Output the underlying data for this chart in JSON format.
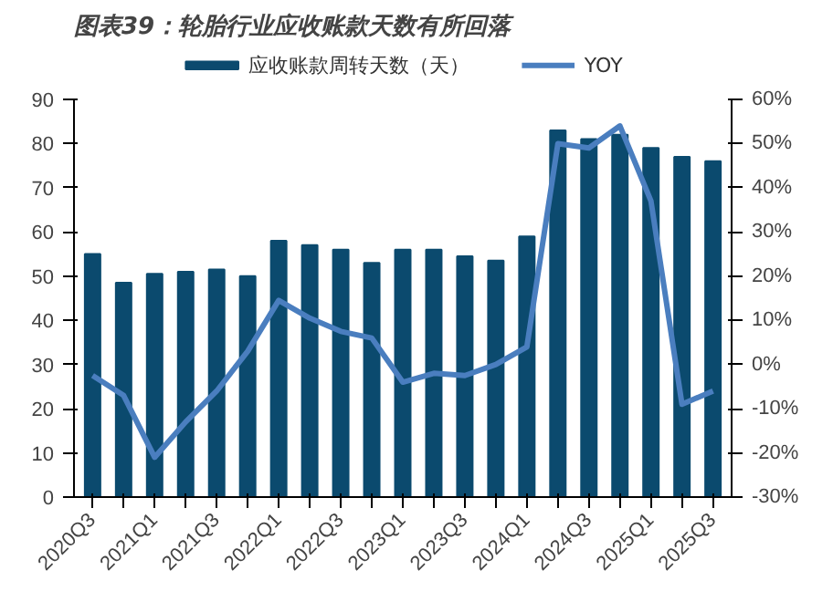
{
  "chart_data": {
    "type": "bar",
    "title": "图表39：轮胎行业应收账款天数有所回落",
    "categories": [
      "2020Q3",
      null,
      "2021Q1",
      null,
      "2021Q3",
      null,
      "2022Q1",
      null,
      "2022Q3",
      null,
      "2023Q1",
      null,
      "2023Q3",
      null,
      "2024Q1",
      null,
      "2024Q3",
      null,
      "2025Q1",
      null,
      "2025Q3"
    ],
    "series": [
      {
        "name": "应收账款周转天数（天）",
        "type": "bar",
        "color": "#0b4a6e",
        "values": [
          55,
          48.5,
          50.5,
          51,
          51.5,
          50,
          58,
          57,
          56,
          53,
          56,
          56,
          54.5,
          53.5,
          59,
          83,
          81,
          82,
          79,
          77,
          76
        ]
      },
      {
        "name": "YOY",
        "type": "line",
        "axis": "y2",
        "color": "#4a7ebf",
        "values": [
          -2.5,
          -7,
          -21,
          -13,
          -6,
          3,
          14.5,
          10.5,
          7.5,
          6,
          -4,
          -2,
          -2.5,
          0,
          4,
          50,
          49,
          54,
          37,
          -9,
          -6
        ]
      }
    ],
    "ylim": [
      0,
      90
    ],
    "yticks": [
      0,
      10,
      20,
      30,
      40,
      50,
      60,
      70,
      80,
      90
    ],
    "y2lim": [
      -30,
      60
    ],
    "y2ticks": [
      {
        "value": -30,
        "label": "-30%"
      },
      {
        "value": -20,
        "label": "-20%"
      },
      {
        "value": -10,
        "label": "-10%"
      },
      {
        "value": 0,
        "label": "0%"
      },
      {
        "value": 10,
        "label": "10%"
      },
      {
        "value": 20,
        "label": "20%"
      },
      {
        "value": 30,
        "label": "30%"
      },
      {
        "value": 40,
        "label": "40%"
      },
      {
        "value": 50,
        "label": "50%"
      },
      {
        "value": 60,
        "label": "60%"
      }
    ],
    "grid": false,
    "legend": "top",
    "line_style": "solid"
  }
}
